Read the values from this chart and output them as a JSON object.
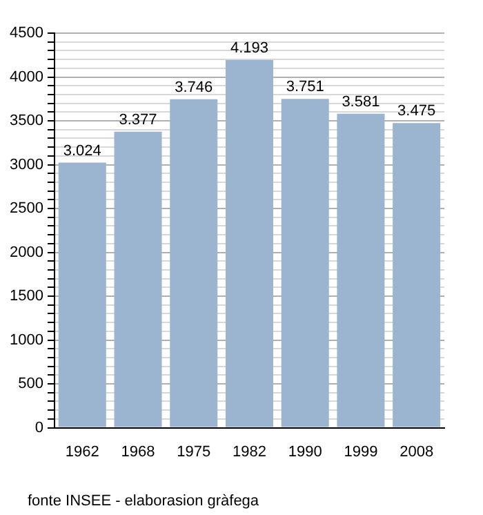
{
  "chart_data": {
    "type": "bar",
    "categories": [
      "1962",
      "1968",
      "1975",
      "1982",
      "1990",
      "1999",
      "2008"
    ],
    "values": [
      3024,
      3377,
      3746,
      4193,
      3751,
      3581,
      3475
    ],
    "value_labels": [
      "3.024",
      "3.377",
      "3.746",
      "4.193",
      "3.751",
      "3.581",
      "3.475"
    ],
    "color": "#9bb4cf",
    "ylim": [
      0,
      4500
    ],
    "yticks": [
      0,
      {
        "value": 100,
        "label": null
      },
      {
        "value": 200,
        "label": null
      },
      {
        "value": 300,
        "label": null
      },
      {
        "value": 400,
        "label": null
      },
      500,
      {
        "value": 600,
        "label": null
      },
      {
        "value": 700,
        "label": null
      },
      {
        "value": 800,
        "label": null
      },
      {
        "value": 900,
        "label": null
      },
      1000,
      {
        "value": 1100,
        "label": null
      },
      {
        "value": 1200,
        "label": null
      },
      {
        "value": 1300,
        "label": null
      },
      {
        "value": 1400,
        "label": null
      },
      1500,
      {
        "value": 1600,
        "label": null
      },
      {
        "value": 1700,
        "label": null
      },
      {
        "value": 1800,
        "label": null
      },
      {
        "value": 1900,
        "label": null
      },
      2000,
      {
        "value": 2100,
        "label": null
      },
      {
        "value": 2200,
        "label": null
      },
      {
        "value": 2300,
        "label": null
      },
      {
        "value": 2400,
        "label": null
      },
      2500,
      {
        "value": 2600,
        "label": null
      },
      {
        "value": 2700,
        "label": null
      },
      {
        "value": 2800,
        "label": null
      },
      {
        "value": 2900,
        "label": null
      },
      3000,
      {
        "value": 3100,
        "label": null
      },
      {
        "value": 3200,
        "label": null
      },
      {
        "value": 3300,
        "label": null
      },
      {
        "value": 3400,
        "label": null
      },
      3500,
      {
        "value": 3600,
        "label": null
      },
      {
        "value": 3700,
        "label": null
      },
      {
        "value": 3800,
        "label": null
      },
      {
        "value": 3900,
        "label": null
      },
      4000,
      {
        "value": 4100,
        "label": null
      },
      {
        "value": 4200,
        "label": null
      },
      {
        "value": 4300,
        "label": null
      },
      {
        "value": 4400,
        "label": null
      },
      4500
    ],
    "grid": "y",
    "annotations": [
      "fonte INSEE - elaborasion gràfega"
    ]
  }
}
